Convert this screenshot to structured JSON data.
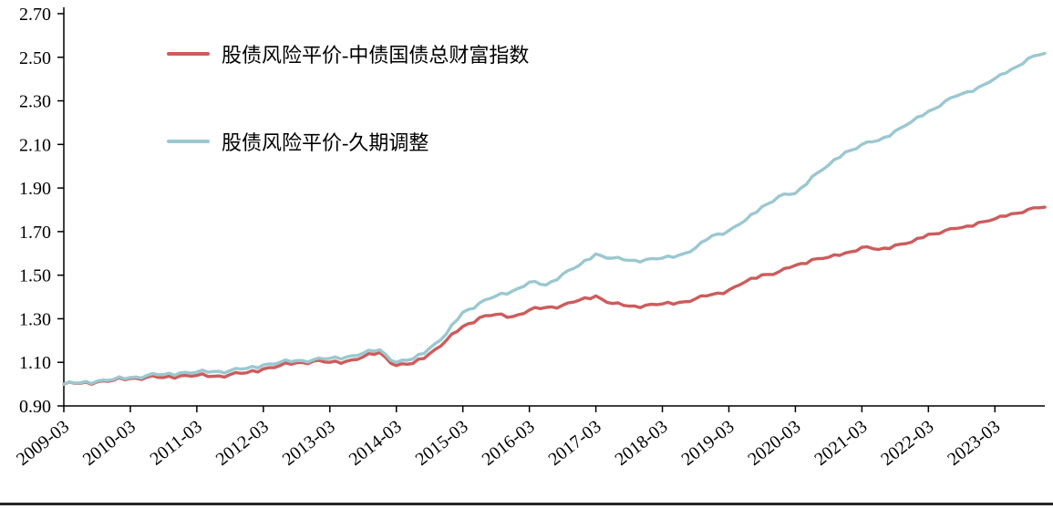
{
  "chart_data": {
    "type": "line",
    "title": "",
    "background": "#ffffff",
    "axis_color": "#000000",
    "grid": false,
    "legend_position": "upper-left",
    "ylim": [
      0.9,
      2.7
    ],
    "y_ticks": [
      0.9,
      1.1,
      1.3,
      1.5,
      1.7,
      1.9,
      2.1,
      2.3,
      2.5,
      2.7
    ],
    "y_tick_labels": [
      "0.90",
      "1.10",
      "1.30",
      "1.50",
      "1.70",
      "1.90",
      "2.10",
      "2.30",
      "2.50",
      "2.70"
    ],
    "x_tick_labels": [
      "2009-03",
      "2010-03",
      "2011-03",
      "2012-03",
      "2013-03",
      "2014-03",
      "2015-03",
      "2016-03",
      "2017-03",
      "2018-03",
      "2019-03",
      "2020-03",
      "2021-03",
      "2022-03",
      "2023-03"
    ],
    "x_months_total": 178,
    "x_tick_month_interval": 12,
    "series": [
      {
        "name": "股债风险平价-中债国债总财富指数",
        "color": "#cd5c5c",
        "x_month_step": 3,
        "values": [
          1.0,
          1.004,
          1.01,
          1.018,
          1.026,
          1.032,
          1.03,
          1.038,
          1.04,
          1.036,
          1.044,
          1.052,
          1.07,
          1.085,
          1.098,
          1.105,
          1.1,
          1.105,
          1.125,
          1.145,
          1.085,
          1.095,
          1.14,
          1.2,
          1.265,
          1.305,
          1.32,
          1.31,
          1.34,
          1.352,
          1.362,
          1.385,
          1.405,
          1.37,
          1.358,
          1.362,
          1.368,
          1.375,
          1.392,
          1.412,
          1.432,
          1.47,
          1.502,
          1.515,
          1.545,
          1.572,
          1.582,
          1.602,
          1.628,
          1.618,
          1.638,
          1.652,
          1.688,
          1.705,
          1.718,
          1.742,
          1.758,
          1.782,
          1.802,
          1.812
        ]
      },
      {
        "name": "股债风险平价-久期调整",
        "color": "#9bc8d0",
        "x_month_step": 3,
        "values": [
          1.0,
          1.006,
          1.014,
          1.022,
          1.03,
          1.04,
          1.044,
          1.052,
          1.055,
          1.058,
          1.062,
          1.072,
          1.088,
          1.1,
          1.108,
          1.112,
          1.118,
          1.125,
          1.142,
          1.158,
          1.1,
          1.115,
          1.165,
          1.23,
          1.33,
          1.372,
          1.405,
          1.428,
          1.468,
          1.455,
          1.505,
          1.545,
          1.598,
          1.578,
          1.568,
          1.572,
          1.578,
          1.592,
          1.625,
          1.682,
          1.705,
          1.752,
          1.815,
          1.862,
          1.875,
          1.952,
          2.005,
          2.065,
          2.1,
          2.118,
          2.162,
          2.205,
          2.252,
          2.298,
          2.332,
          2.362,
          2.402,
          2.445,
          2.495,
          2.518
        ]
      }
    ]
  }
}
